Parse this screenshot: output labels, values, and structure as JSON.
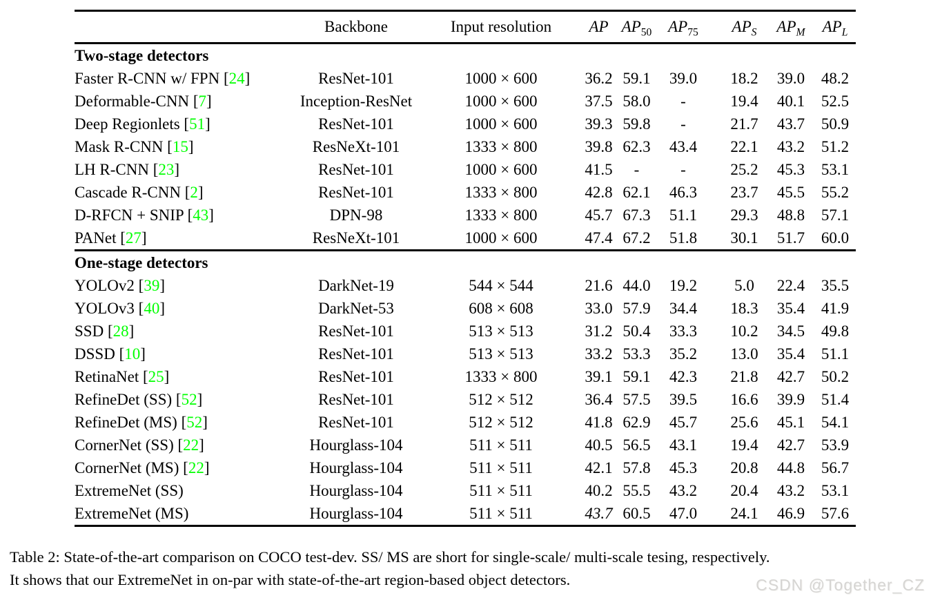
{
  "table": {
    "header": {
      "method": "",
      "backbone": "Backbone",
      "input_resolution": "Input resolution",
      "ap": {
        "base": "AP",
        "sub": ""
      },
      "ap50": {
        "base": "AP",
        "sub": "50"
      },
      "ap75": {
        "base": "AP",
        "sub": "75"
      },
      "apS": {
        "base": "AP",
        "sub": "S"
      },
      "apM": {
        "base": "AP",
        "sub": "M"
      },
      "apL": {
        "base": "AP",
        "sub": "L"
      }
    },
    "sections": [
      {
        "title": "Two-stage detectors",
        "rows": [
          {
            "method": "Faster R-CNN w/ FPN",
            "ref": "24",
            "backbone": "ResNet-101",
            "resolution": "1000 × 600",
            "values": [
              "36.2",
              "59.1",
              "39.0",
              "18.2",
              "39.0",
              "48.2"
            ]
          },
          {
            "method": "Deformable-CNN",
            "ref": "7",
            "backbone": "Inception-ResNet",
            "resolution": "1000 × 600",
            "values": [
              "37.5",
              "58.0",
              "-",
              "19.4",
              "40.1",
              "52.5"
            ]
          },
          {
            "method": "Deep Regionlets",
            "ref": "51",
            "backbone": "ResNet-101",
            "resolution": "1000 × 600",
            "values": [
              "39.3",
              "59.8",
              "-",
              "21.7",
              "43.7",
              "50.9"
            ]
          },
          {
            "method": "Mask R-CNN",
            "ref": "15",
            "backbone": "ResNeXt-101",
            "resolution": "1333 × 800",
            "values": [
              "39.8",
              "62.3",
              "43.4",
              "22.1",
              "43.2",
              "51.2"
            ]
          },
          {
            "method": "LH R-CNN",
            "ref": "23",
            "backbone": "ResNet-101",
            "resolution": "1000 × 600",
            "values": [
              "41.5",
              "-",
              "-",
              "25.2",
              "45.3",
              "53.1"
            ]
          },
          {
            "method": "Cascade R-CNN",
            "ref": "2",
            "backbone": "ResNet-101",
            "resolution": "1333 × 800",
            "values": [
              "42.8",
              "62.1",
              "46.3",
              "23.7",
              "45.5",
              "55.2"
            ]
          },
          {
            "method": "D-RFCN + SNIP",
            "ref": "43",
            "backbone": "DPN-98",
            "resolution": "1333 × 800",
            "values": [
              "45.7",
              "67.3",
              "51.1",
              "29.3",
              "48.8",
              "57.1"
            ]
          },
          {
            "method": "PANet",
            "ref": "27",
            "backbone": "ResNeXt-101",
            "resolution": "1000 × 600",
            "values": [
              "47.4",
              "67.2",
              "51.8",
              "30.1",
              "51.7",
              "60.0"
            ]
          }
        ]
      },
      {
        "title": "One-stage detectors",
        "rows": [
          {
            "method": "YOLOv2",
            "ref": "39",
            "backbone": "DarkNet-19",
            "resolution": "544 × 544",
            "values": [
              "21.6",
              "44.0",
              "19.2",
              "5.0",
              "22.4",
              "35.5"
            ]
          },
          {
            "method": "YOLOv3",
            "ref": "40",
            "backbone": "DarkNet-53",
            "resolution": "608 × 608",
            "values": [
              "33.0",
              "57.9",
              "34.4",
              "18.3",
              "35.4",
              "41.9"
            ]
          },
          {
            "method": "SSD",
            "ref": "28",
            "backbone": "ResNet-101",
            "resolution": "513 × 513",
            "values": [
              "31.2",
              "50.4",
              "33.3",
              "10.2",
              "34.5",
              "49.8"
            ]
          },
          {
            "method": "DSSD",
            "ref": "10",
            "backbone": "ResNet-101",
            "resolution": "513 × 513",
            "values": [
              "33.2",
              "53.3",
              "35.2",
              "13.0",
              "35.4",
              "51.1"
            ]
          },
          {
            "method": "RetinaNet",
            "ref": "25",
            "backbone": "ResNet-101",
            "resolution": "1333 × 800",
            "values": [
              "39.1",
              "59.1",
              "42.3",
              "21.8",
              "42.7",
              "50.2"
            ]
          },
          {
            "method": "RefineDet (SS)",
            "ref": "52",
            "backbone": "ResNet-101",
            "resolution": "512 × 512",
            "values": [
              "36.4",
              "57.5",
              "39.5",
              "16.6",
              "39.9",
              "51.4"
            ]
          },
          {
            "method": "RefineDet (MS)",
            "ref": "52",
            "backbone": "ResNet-101",
            "resolution": "512 × 512",
            "values": [
              "41.8",
              "62.9",
              "45.7",
              "25.6",
              "45.1",
              "54.1"
            ]
          },
          {
            "method": "CornerNet (SS)",
            "ref": "22",
            "backbone": "Hourglass-104",
            "resolution": "511 × 511",
            "values": [
              "40.5",
              "56.5",
              "43.1",
              "19.4",
              "42.7",
              "53.9"
            ]
          },
          {
            "method": "CornerNet (MS)",
            "ref": "22",
            "backbone": "Hourglass-104",
            "resolution": "511 × 511",
            "values": [
              "42.1",
              "57.8",
              "45.3",
              "20.8",
              "44.8",
              "56.7"
            ]
          },
          {
            "method": "ExtremeNet (SS)",
            "ref": null,
            "backbone": "Hourglass-104",
            "resolution": "511 × 511",
            "values": [
              "40.2",
              "55.5",
              "43.2",
              "20.4",
              "43.2",
              "53.1"
            ]
          },
          {
            "method": "ExtremeNet (MS)",
            "ref": null,
            "backbone": "Hourglass-104",
            "resolution": "511 × 511",
            "values": [
              {
                "text": "43.7",
                "italic": true
              },
              "60.5",
              "47.0",
              "24.1",
              "46.9",
              "57.6"
            ]
          }
        ]
      }
    ]
  },
  "caption": {
    "line1": "Table 2: State-of-the-art comparison on COCO test-dev. SS/ MS are short for single-scale/ multi-scale tesing, respectively.",
    "line2": "It shows that our ExtremeNet in on-par with state-of-the-art region-based object detectors."
  },
  "watermark": "CSDN @Together_CZ",
  "colors": {
    "citation_green": "#00ff00",
    "watermark_gray": "#d6d5d3"
  }
}
